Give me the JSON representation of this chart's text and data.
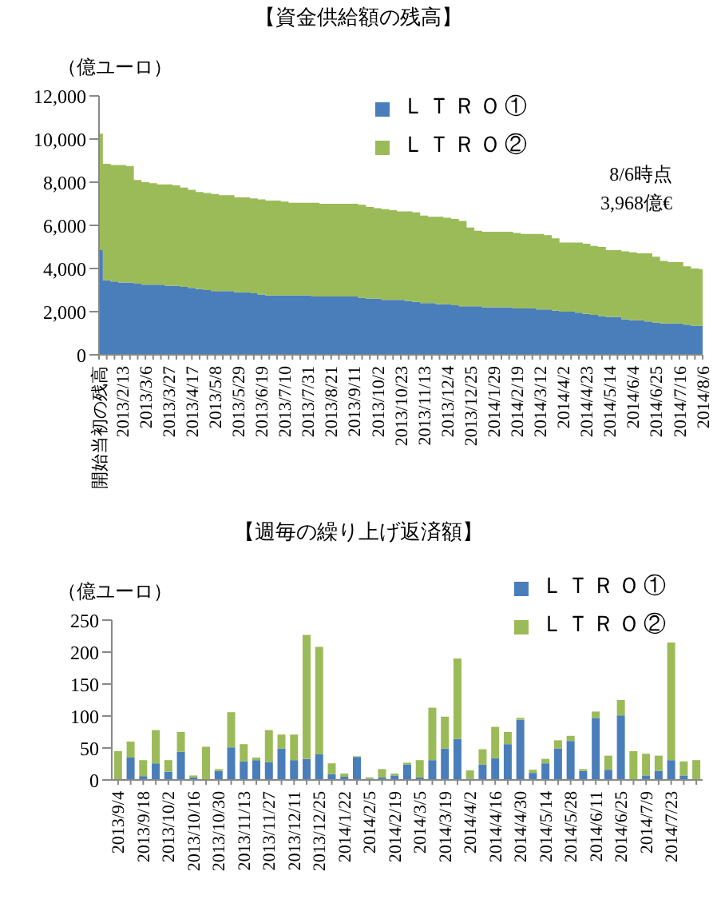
{
  "chart_data": [
    {
      "type": "area",
      "title": "【資金供給額の残高】",
      "ylabel": "（億ユーロ）",
      "stacked": true,
      "legend": "top",
      "categories": [
        "開始当初の残高",
        null,
        null,
        "2013/2/13",
        null,
        null,
        "2013/3/6",
        null,
        null,
        "2013/3/27",
        null,
        null,
        "2013/4/17",
        null,
        null,
        "2013/5/8",
        null,
        null,
        "2013/5/29",
        null,
        null,
        "2013/6/19",
        null,
        null,
        "2013/7/10",
        null,
        null,
        "2013/7/31",
        null,
        null,
        "2013/8/21",
        null,
        null,
        "2013/9/11",
        null,
        null,
        "2013/10/2",
        null,
        null,
        "2013/10/23",
        null,
        null,
        "2013/11/13",
        null,
        null,
        "2013/12/4",
        null,
        null,
        "2013/12/25",
        null,
        null,
        "2014/1/29",
        null,
        null,
        "2014/2/19",
        null,
        null,
        "2014/3/12",
        null,
        null,
        "2014/4/2",
        null,
        null,
        "2014/4/23",
        null,
        null,
        "2014/5/14",
        null,
        null,
        "2014/6/4",
        null,
        null,
        "2014/6/25",
        null,
        null,
        "2014/7/16",
        null,
        null,
        "2014/8/6"
      ],
      "series": [
        {
          "name": "ＬＴＲＯ①",
          "color": "#4a7ebb",
          "values": [
            4850,
            3450,
            3400,
            3350,
            3350,
            3300,
            3250,
            3250,
            3250,
            3200,
            3200,
            3150,
            3100,
            3050,
            3000,
            2950,
            2950,
            2950,
            2900,
            2900,
            2850,
            2800,
            2750,
            2750,
            2750,
            2750,
            2750,
            2750,
            2700,
            2700,
            2700,
            2700,
            2700,
            2700,
            2650,
            2600,
            2600,
            2550,
            2550,
            2550,
            2500,
            2450,
            2400,
            2400,
            2350,
            2350,
            2300,
            2250,
            2250,
            2250,
            2200,
            2200,
            2200,
            2200,
            2150,
            2150,
            2150,
            2100,
            2100,
            2050,
            2000,
            2000,
            1950,
            1900,
            1850,
            1800,
            1750,
            1750,
            1650,
            1600,
            1600,
            1550,
            1500,
            1450,
            1450,
            1450,
            1400,
            1350,
            1350
          ]
        },
        {
          "name": "ＬＴＲＯ②",
          "color": "#9bbb59",
          "values": [
            5400,
            5400,
            5400,
            5450,
            5400,
            4800,
            4750,
            4700,
            4650,
            4700,
            4650,
            4600,
            4550,
            4500,
            4500,
            4500,
            4450,
            4450,
            4400,
            4400,
            4400,
            4400,
            4400,
            4400,
            4350,
            4300,
            4300,
            4300,
            4350,
            4300,
            4300,
            4300,
            4300,
            4300,
            4300,
            4250,
            4200,
            4200,
            4150,
            4100,
            4150,
            4150,
            4050,
            4000,
            4050,
            4000,
            4000,
            3950,
            3650,
            3500,
            3500,
            3500,
            3500,
            3500,
            3500,
            3450,
            3450,
            3500,
            3450,
            3350,
            3200,
            3200,
            3250,
            3250,
            3200,
            3200,
            3100,
            3100,
            3150,
            3150,
            3100,
            3150,
            3050,
            2900,
            2850,
            2850,
            2700,
            2650,
            2618
          ]
        }
      ],
      "ylim": [
        0,
        12000
      ],
      "yticks": [
        0,
        {
          "value": 2000,
          "label": "2,000"
        },
        {
          "value": 4000,
          "label": "4,000"
        },
        {
          "value": 6000,
          "label": "6,000"
        },
        {
          "value": 8000,
          "label": "8,000"
        },
        {
          "value": 10000,
          "label": "10,000"
        },
        {
          "value": 12000,
          "label": "12,000"
        }
      ],
      "annotations": [
        "8/6時点",
        "3,968億€"
      ]
    },
    {
      "type": "bar",
      "title": "【週毎の繰り上げ返済額】",
      "ylabel": "（億ユーロ）",
      "stacked": true,
      "legend": "top right",
      "categories": [
        "2013/9/4",
        null,
        "2013/9/18",
        null,
        "2013/10/2",
        null,
        "2013/10/16",
        null,
        "2013/10/30",
        null,
        "2013/11/13",
        null,
        "2013/11/27",
        null,
        "2013/12/11",
        null,
        "2013/12/25",
        null,
        "2014/1/22",
        null,
        "2014/2/5",
        null,
        "2014/2/19",
        null,
        "2014/3/5",
        null,
        "2014/3/19",
        null,
        "2014/4/2",
        null,
        "2014/4/16",
        null,
        "2014/4/30",
        null,
        "2014/5/14",
        null,
        "2014/5/28",
        null,
        "2014/6/11",
        null,
        "2014/6/25",
        null,
        "2014/7/9",
        null,
        "2014/7/23",
        null,
        null
      ],
      "series": [
        {
          "name": "ＬＴＲＯ①",
          "color": "#4a7ebb",
          "values": [
            0,
            35,
            6,
            26,
            13,
            44,
            4,
            0,
            14,
            51,
            29,
            31,
            28,
            49,
            31,
            33,
            40,
            9,
            5,
            36,
            2,
            4,
            7,
            24,
            4,
            31,
            49,
            64,
            2,
            24,
            34,
            56,
            94,
            11,
            26,
            49,
            61,
            14,
            97,
            16,
            101,
            0,
            7,
            14,
            31,
            7,
            0
          ]
        },
        {
          "name": "ＬＴＲＯ②",
          "color": "#9bbb59",
          "values": [
            45,
            25,
            25,
            52,
            18,
            31,
            3,
            52,
            3,
            55,
            27,
            4,
            50,
            22,
            40,
            194,
            168,
            17,
            5,
            1,
            2,
            13,
            3,
            3,
            27,
            82,
            50,
            126,
            13,
            24,
            49,
            19,
            3,
            5,
            7,
            13,
            8,
            3,
            10,
            22,
            24,
            45,
            34,
            24,
            184,
            22,
            31
          ]
        }
      ],
      "ylim": [
        0,
        250
      ],
      "yticks": [
        0,
        50,
        100,
        150,
        200,
        250
      ]
    }
  ]
}
